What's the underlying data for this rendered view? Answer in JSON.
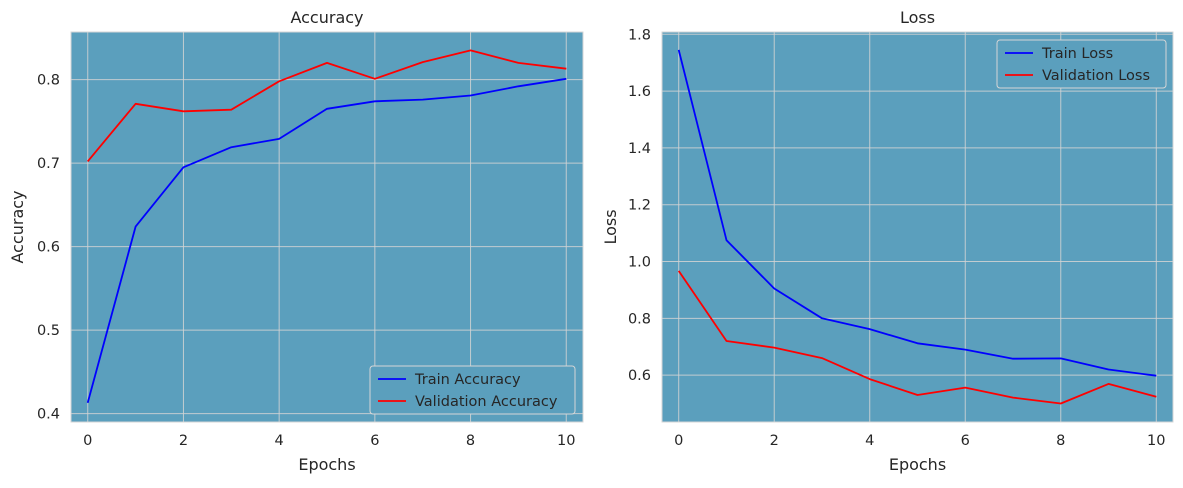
{
  "colors": {
    "plot_background": "#5b9fbd",
    "train": "#0000ff",
    "validation": "#ff0000"
  },
  "chart_data": [
    {
      "type": "line",
      "title": "Accuracy",
      "xlabel": "Epochs",
      "ylabel": "Accuracy",
      "x": [
        0,
        1,
        2,
        3,
        4,
        5,
        6,
        7,
        8,
        9,
        10
      ],
      "xlim": [
        -0.35,
        10.35
      ],
      "ylim": [
        0.39,
        0.857
      ],
      "xticks": [
        0,
        2,
        4,
        6,
        8,
        10
      ],
      "yticks": [
        0.4,
        0.5,
        0.6,
        0.7,
        0.8
      ],
      "ytick_labels": [
        "0.4",
        "0.5",
        "0.6",
        "0.7",
        "0.8"
      ],
      "grid": true,
      "legend_position": "lower-right",
      "series": [
        {
          "name": "Train Accuracy",
          "color": "#0000ff",
          "values": [
            0.413,
            0.624,
            0.695,
            0.719,
            0.729,
            0.765,
            0.774,
            0.776,
            0.781,
            0.792,
            0.801
          ]
        },
        {
          "name": "Validation Accuracy",
          "color": "#ff0000",
          "values": [
            0.702,
            0.771,
            0.762,
            0.764,
            0.798,
            0.82,
            0.801,
            0.821,
            0.835,
            0.82,
            0.813
          ]
        }
      ]
    },
    {
      "type": "line",
      "title": "Loss",
      "xlabel": "Epochs",
      "ylabel": "Loss",
      "x": [
        0,
        1,
        2,
        3,
        4,
        5,
        6,
        7,
        8,
        9,
        10
      ],
      "xlim": [
        -0.35,
        10.35
      ],
      "ylim": [
        0.435,
        1.808
      ],
      "xticks": [
        0,
        2,
        4,
        6,
        8,
        10
      ],
      "yticks": [
        0.6,
        0.8,
        1.0,
        1.2,
        1.4,
        1.6,
        1.8
      ],
      "ytick_labels": [
        "0.6",
        "0.8",
        "1.0",
        "1.2",
        "1.4",
        "1.6",
        "1.8"
      ],
      "grid": true,
      "legend_position": "upper-right",
      "series": [
        {
          "name": "Train Loss",
          "color": "#0000ff",
          "values": [
            1.745,
            1.075,
            0.905,
            0.8,
            0.762,
            0.712,
            0.69,
            0.658,
            0.659,
            0.62,
            0.598
          ]
        },
        {
          "name": "Validation Loss",
          "color": "#ff0000",
          "values": [
            0.967,
            0.72,
            0.697,
            0.66,
            0.586,
            0.53,
            0.556,
            0.521,
            0.5,
            0.569,
            0.524
          ]
        }
      ]
    }
  ]
}
